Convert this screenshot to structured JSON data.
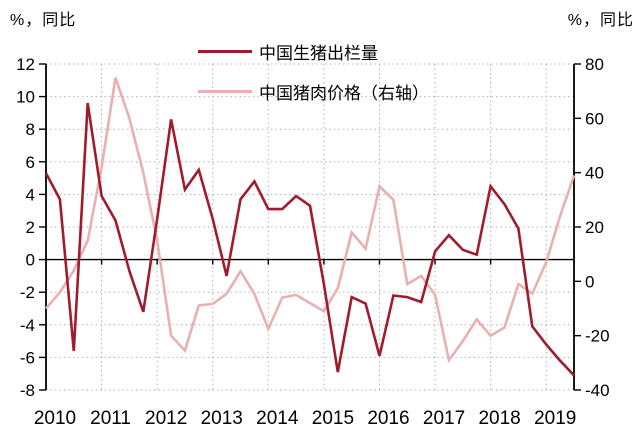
{
  "chart_data": {
    "type": "line",
    "title": "",
    "frequency": "quarterly",
    "x_start": "2010Q1",
    "x_end": "2019Q3",
    "x_years": [
      "2010",
      "2011",
      "2012",
      "2013",
      "2014",
      "2015",
      "2016",
      "2017",
      "2018",
      "2019"
    ],
    "points_per_year": 4,
    "left_axis": {
      "title": "%，同比",
      "min": -8,
      "max": 12,
      "ticks": [
        12,
        10,
        8,
        6,
        4,
        2,
        0,
        -2,
        -4,
        -6,
        -8
      ]
    },
    "right_axis": {
      "title": "%，同比",
      "min": -40,
      "max": 80,
      "ticks": [
        80,
        60,
        40,
        20,
        0,
        -20,
        -40
      ]
    },
    "grid": {
      "color": "#b3b3b3",
      "style": "dotted",
      "vertical": "yearly",
      "horizontal": "every-2-units"
    },
    "legend_position": "top-center",
    "series": [
      {
        "name": "中国生猪出栏量",
        "axis": "left",
        "color": "#a01c2c",
        "values": [
          5.3,
          3.7,
          -5.6,
          9.6,
          3.9,
          2.4,
          -0.7,
          -3.2,
          2.5,
          8.6,
          4.3,
          5.5,
          2.5,
          -1.0,
          3.7,
          4.8,
          3.1,
          3.1,
          3.9,
          3.3,
          -1.5,
          -6.9,
          -2.3,
          -2.7,
          -5.9,
          -2.2,
          -2.3,
          -2.6,
          0.5,
          1.5,
          0.6,
          0.3,
          4.5,
          3.4,
          1.9,
          -4.1,
          -5.2,
          -6.2,
          -7.1
        ]
      },
      {
        "name": "中国猪肉价格（右轴）",
        "axis": "right",
        "color": "#eab0b0",
        "values": [
          -10,
          -4,
          4,
          15,
          42,
          75,
          60,
          40,
          15,
          -20,
          -25.5,
          -8.9,
          -8.3,
          -4.6,
          3.7,
          -4.6,
          -17.5,
          -6,
          -5,
          -8,
          -11,
          -2.5,
          18,
          12,
          35,
          30,
          -1,
          2,
          -5,
          -29,
          -22,
          -14,
          -20,
          -17,
          -1,
          -4.5,
          7,
          24,
          39
        ]
      }
    ]
  }
}
